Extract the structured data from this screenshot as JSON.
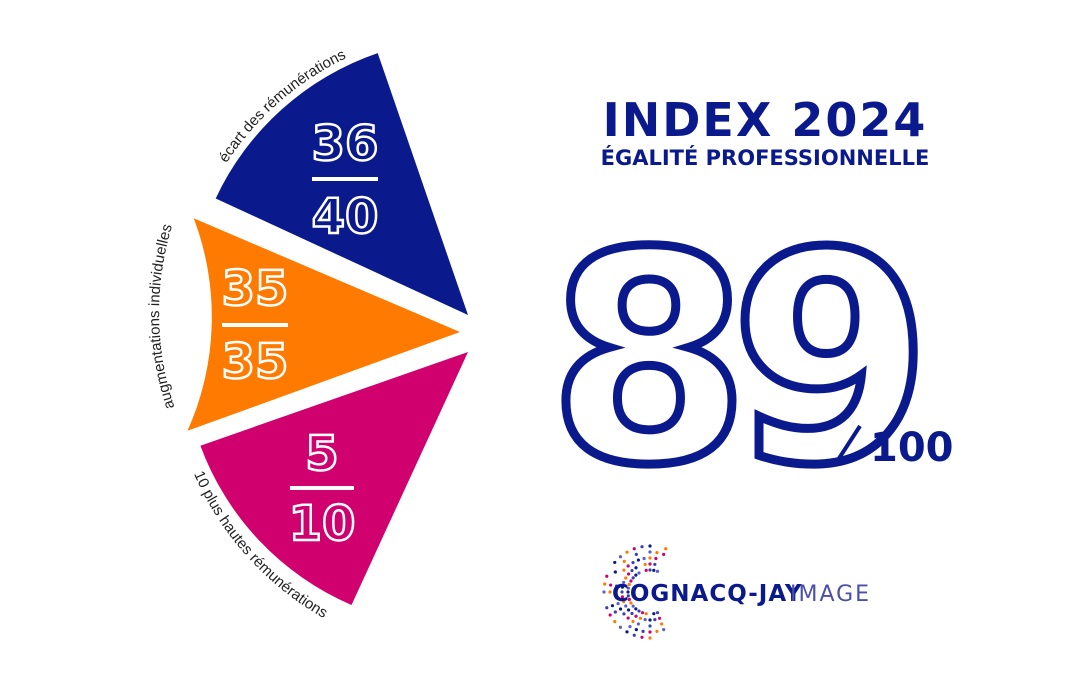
{
  "header": {
    "title": "INDEX 2024",
    "subtitle": "ÉGALITÉ PROFESSIONNELLE"
  },
  "score": {
    "value": "89",
    "max": "100"
  },
  "segments": [
    {
      "label": "écart des rémunérations",
      "score": "36",
      "max": "40"
    },
    {
      "label": "augmentations individuelles",
      "score": "35",
      "max": "35"
    },
    {
      "label": "10 plus hautes rémunérations",
      "score": "5",
      "max": "10"
    }
  ],
  "logo": {
    "name": "COGNACQ-JAY",
    "suffix": "IMAGE"
  }
}
